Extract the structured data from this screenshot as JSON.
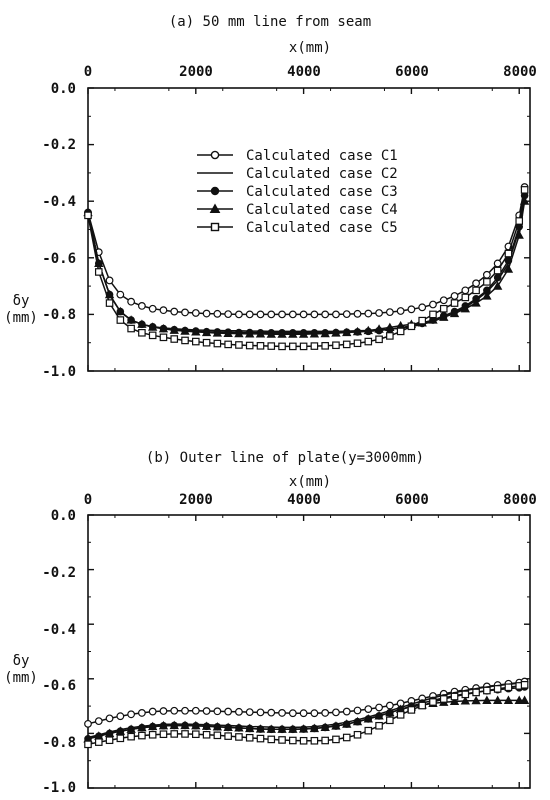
{
  "chart_data": [
    {
      "type": "line",
      "title": "(a) 50 mm line from seam",
      "xlabel": "x(mm)",
      "ylabel": [
        "δy",
        "(mm)"
      ],
      "xlim": [
        0,
        8200
      ],
      "ylim": [
        -1.0,
        0.0
      ],
      "x_ticks": [
        0,
        2000,
        4000,
        6000,
        8000
      ],
      "x_tick_labels": [
        "0",
        "2000",
        "4000",
        "6000",
        "8000"
      ],
      "y_ticks": [
        0.0,
        -0.2,
        -0.4,
        -0.6,
        -0.8,
        -1.0
      ],
      "y_tick_labels": [
        "0.0",
        "-0.2",
        "-0.4",
        "-0.6",
        "-0.8",
        "-1.0"
      ],
      "grid": false,
      "legend_position": "center",
      "x": [
        0,
        200,
        400,
        600,
        800,
        1000,
        1200,
        1400,
        1600,
        1800,
        2000,
        2200,
        2400,
        2600,
        2800,
        3000,
        3200,
        3400,
        3600,
        3800,
        4000,
        4200,
        4400,
        4600,
        4800,
        5000,
        5200,
        5400,
        5600,
        5800,
        6000,
        6200,
        6400,
        6600,
        6800,
        7000,
        7200,
        7400,
        7600,
        7800,
        8000,
        8100
      ],
      "series": [
        {
          "name": "Calculated case C1",
          "marker": "open-circle",
          "values": [
            -0.44,
            -0.58,
            -0.68,
            -0.73,
            -0.755,
            -0.77,
            -0.78,
            -0.785,
            -0.79,
            -0.793,
            -0.795,
            -0.797,
            -0.798,
            -0.799,
            -0.8,
            -0.8,
            -0.8,
            -0.8,
            -0.8,
            -0.8,
            -0.8,
            -0.8,
            -0.8,
            -0.8,
            -0.799,
            -0.798,
            -0.797,
            -0.795,
            -0.792,
            -0.788,
            -0.782,
            -0.775,
            -0.765,
            -0.75,
            -0.735,
            -0.715,
            -0.69,
            -0.66,
            -0.62,
            -0.56,
            -0.45,
            -0.35
          ]
        },
        {
          "name": "Calculated case C2",
          "marker": "none",
          "values": [
            -0.44,
            -0.62,
            -0.73,
            -0.79,
            -0.82,
            -0.835,
            -0.843,
            -0.848,
            -0.851,
            -0.853,
            -0.855,
            -0.856,
            -0.857,
            -0.858,
            -0.858,
            -0.859,
            -0.859,
            -0.86,
            -0.86,
            -0.86,
            -0.86,
            -0.86,
            -0.86,
            -0.86,
            -0.859,
            -0.858,
            -0.857,
            -0.855,
            -0.852,
            -0.848,
            -0.843,
            -0.835,
            -0.825,
            -0.81,
            -0.795,
            -0.775,
            -0.75,
            -0.72,
            -0.68,
            -0.62,
            -0.5,
            -0.39
          ]
        },
        {
          "name": "Calculated case C3",
          "marker": "filled-circle",
          "values": [
            -0.44,
            -0.62,
            -0.73,
            -0.79,
            -0.82,
            -0.835,
            -0.844,
            -0.85,
            -0.854,
            -0.857,
            -0.859,
            -0.861,
            -0.862,
            -0.863,
            -0.864,
            -0.864,
            -0.865,
            -0.865,
            -0.865,
            -0.865,
            -0.865,
            -0.865,
            -0.865,
            -0.864,
            -0.863,
            -0.862,
            -0.86,
            -0.857,
            -0.853,
            -0.847,
            -0.84,
            -0.832,
            -0.82,
            -0.805,
            -0.79,
            -0.77,
            -0.745,
            -0.715,
            -0.67,
            -0.61,
            -0.49,
            -0.38
          ]
        },
        {
          "name": "Calculated case C4",
          "marker": "filled-triangle",
          "values": [
            -0.44,
            -0.62,
            -0.73,
            -0.79,
            -0.82,
            -0.835,
            -0.845,
            -0.851,
            -0.856,
            -0.859,
            -0.862,
            -0.864,
            -0.866,
            -0.867,
            -0.868,
            -0.869,
            -0.869,
            -0.87,
            -0.87,
            -0.87,
            -0.87,
            -0.869,
            -0.868,
            -0.866,
            -0.864,
            -0.861,
            -0.857,
            -0.852,
            -0.846,
            -0.84,
            -0.835,
            -0.83,
            -0.82,
            -0.81,
            -0.797,
            -0.78,
            -0.76,
            -0.735,
            -0.7,
            -0.64,
            -0.52,
            -0.4
          ]
        },
        {
          "name": "Calculated case C5",
          "marker": "open-square",
          "values": [
            -0.45,
            -0.65,
            -0.76,
            -0.82,
            -0.85,
            -0.865,
            -0.874,
            -0.881,
            -0.887,
            -0.892,
            -0.896,
            -0.9,
            -0.903,
            -0.906,
            -0.908,
            -0.91,
            -0.911,
            -0.912,
            -0.913,
            -0.913,
            -0.913,
            -0.912,
            -0.911,
            -0.909,
            -0.906,
            -0.902,
            -0.896,
            -0.888,
            -0.876,
            -0.86,
            -0.842,
            -0.822,
            -0.8,
            -0.78,
            -0.76,
            -0.74,
            -0.715,
            -0.685,
            -0.645,
            -0.585,
            -0.47,
            -0.36
          ]
        }
      ]
    },
    {
      "type": "line",
      "title": "(b) Outer line of plate(y=3000mm)",
      "xlabel": "x(mm)",
      "ylabel": [
        "δy",
        "(mm)"
      ],
      "xlim": [
        0,
        8200
      ],
      "ylim": [
        -1.0,
        0.0
      ],
      "x_ticks": [
        0,
        2000,
        4000,
        6000,
        8000
      ],
      "x_tick_labels": [
        "0",
        "2000",
        "4000",
        "6000",
        "8000"
      ],
      "y_ticks": [
        0.0,
        -0.2,
        -0.4,
        -0.6,
        -0.8,
        -1.0
      ],
      "y_tick_labels": [
        "0.0",
        "-0.2",
        "-0.4",
        "-0.6",
        "-0.8",
        "-1.0"
      ],
      "grid": false,
      "x": [
        0,
        200,
        400,
        600,
        800,
        1000,
        1200,
        1400,
        1600,
        1800,
        2000,
        2200,
        2400,
        2600,
        2800,
        3000,
        3200,
        3400,
        3600,
        3800,
        4000,
        4200,
        4400,
        4600,
        4800,
        5000,
        5200,
        5400,
        5600,
        5800,
        6000,
        6200,
        6400,
        6600,
        6800,
        7000,
        7200,
        7400,
        7600,
        7800,
        8000,
        8100
      ],
      "series": [
        {
          "name": "Calculated case C1",
          "marker": "open-circle",
          "values": [
            -0.765,
            -0.755,
            -0.745,
            -0.737,
            -0.73,
            -0.725,
            -0.72,
            -0.718,
            -0.717,
            -0.717,
            -0.717,
            -0.718,
            -0.719,
            -0.72,
            -0.721,
            -0.722,
            -0.723,
            -0.724,
            -0.725,
            -0.726,
            -0.726,
            -0.726,
            -0.725,
            -0.723,
            -0.72,
            -0.716,
            -0.711,
            -0.705,
            -0.698,
            -0.69,
            -0.681,
            -0.672,
            -0.663,
            -0.655,
            -0.647,
            -0.64,
            -0.634,
            -0.628,
            -0.623,
            -0.618,
            -0.614,
            -0.61
          ]
        },
        {
          "name": "Calculated case C2",
          "marker": "none",
          "values": [
            -0.815,
            -0.805,
            -0.795,
            -0.786,
            -0.779,
            -0.774,
            -0.77,
            -0.767,
            -0.766,
            -0.766,
            -0.767,
            -0.768,
            -0.77,
            -0.771,
            -0.773,
            -0.775,
            -0.776,
            -0.777,
            -0.778,
            -0.778,
            -0.777,
            -0.775,
            -0.771,
            -0.766,
            -0.759,
            -0.75,
            -0.74,
            -0.729,
            -0.717,
            -0.705,
            -0.693,
            -0.681,
            -0.67,
            -0.66,
            -0.651,
            -0.643,
            -0.636,
            -0.63,
            -0.625,
            -0.62,
            -0.616,
            -0.613
          ]
        },
        {
          "name": "Calculated case C3",
          "marker": "filled-circle",
          "values": [
            -0.82,
            -0.81,
            -0.8,
            -0.792,
            -0.785,
            -0.779,
            -0.775,
            -0.772,
            -0.771,
            -0.771,
            -0.772,
            -0.774,
            -0.776,
            -0.778,
            -0.78,
            -0.782,
            -0.784,
            -0.785,
            -0.785,
            -0.785,
            -0.784,
            -0.782,
            -0.778,
            -0.773,
            -0.766,
            -0.757,
            -0.747,
            -0.736,
            -0.724,
            -0.712,
            -0.7,
            -0.689,
            -0.679,
            -0.67,
            -0.662,
            -0.655,
            -0.649,
            -0.644,
            -0.64,
            -0.636,
            -0.633,
            -0.63
          ]
        },
        {
          "name": "Calculated case C4",
          "marker": "filled-triangle",
          "values": [
            -0.82,
            -0.81,
            -0.8,
            -0.792,
            -0.785,
            -0.779,
            -0.775,
            -0.772,
            -0.771,
            -0.771,
            -0.772,
            -0.774,
            -0.776,
            -0.778,
            -0.78,
            -0.782,
            -0.784,
            -0.785,
            -0.785,
            -0.785,
            -0.784,
            -0.782,
            -0.778,
            -0.773,
            -0.766,
            -0.757,
            -0.747,
            -0.736,
            -0.724,
            -0.712,
            -0.703,
            -0.696,
            -0.69,
            -0.686,
            -0.683,
            -0.681,
            -0.68,
            -0.679,
            -0.679,
            -0.679,
            -0.679,
            -0.679
          ]
        },
        {
          "name": "Calculated case C5",
          "marker": "open-square",
          "values": [
            -0.84,
            -0.832,
            -0.825,
            -0.818,
            -0.812,
            -0.808,
            -0.805,
            -0.803,
            -0.802,
            -0.802,
            -0.803,
            -0.805,
            -0.807,
            -0.81,
            -0.813,
            -0.816,
            -0.819,
            -0.822,
            -0.824,
            -0.826,
            -0.827,
            -0.827,
            -0.826,
            -0.822,
            -0.815,
            -0.805,
            -0.79,
            -0.772,
            -0.752,
            -0.732,
            -0.714,
            -0.698,
            -0.685,
            -0.674,
            -0.665,
            -0.657,
            -0.65,
            -0.643,
            -0.637,
            -0.631,
            -0.626,
            -0.622
          ]
        }
      ]
    }
  ]
}
